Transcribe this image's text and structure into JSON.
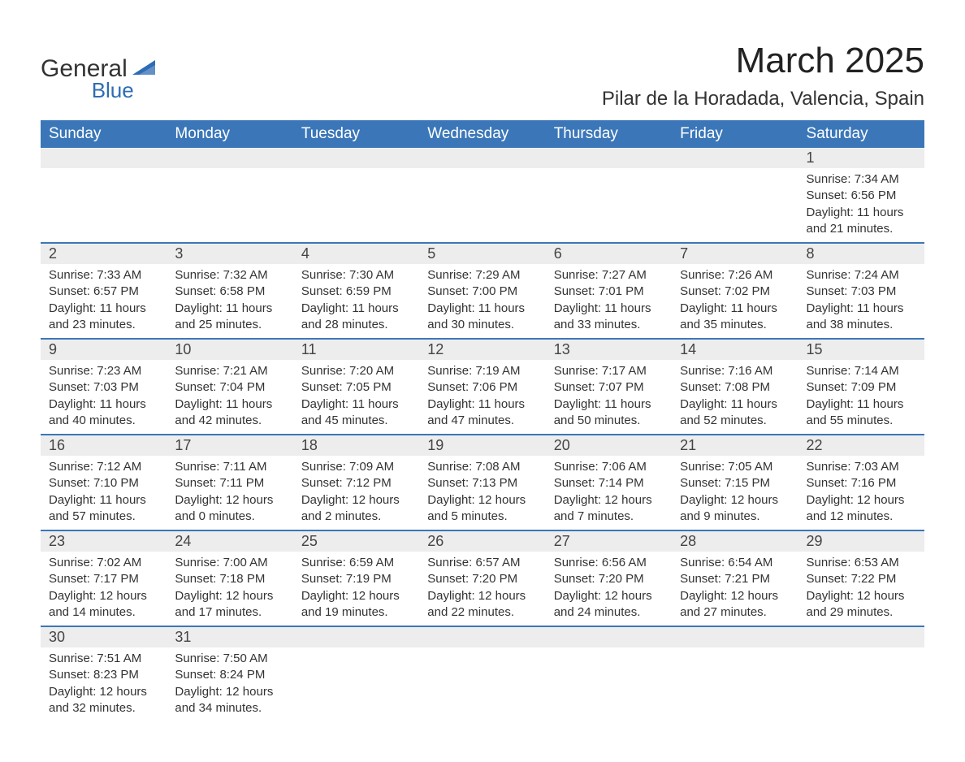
{
  "logo": {
    "general": "General",
    "blue": "Blue",
    "triangle_color": "#2e6cb5"
  },
  "title": "March 2025",
  "location": "Pilar de la Horadada, Valencia, Spain",
  "colors": {
    "header_bg": "#3b77b8",
    "header_text": "#ffffff",
    "daynum_bg": "#ededed",
    "text": "#333333",
    "border": "#3b77b8"
  },
  "weekdays": [
    "Sunday",
    "Monday",
    "Tuesday",
    "Wednesday",
    "Thursday",
    "Friday",
    "Saturday"
  ],
  "weeks": [
    [
      {
        "num": "",
        "sunrise": "",
        "sunset": "",
        "daylight1": "",
        "daylight2": ""
      },
      {
        "num": "",
        "sunrise": "",
        "sunset": "",
        "daylight1": "",
        "daylight2": ""
      },
      {
        "num": "",
        "sunrise": "",
        "sunset": "",
        "daylight1": "",
        "daylight2": ""
      },
      {
        "num": "",
        "sunrise": "",
        "sunset": "",
        "daylight1": "",
        "daylight2": ""
      },
      {
        "num": "",
        "sunrise": "",
        "sunset": "",
        "daylight1": "",
        "daylight2": ""
      },
      {
        "num": "",
        "sunrise": "",
        "sunset": "",
        "daylight1": "",
        "daylight2": ""
      },
      {
        "num": "1",
        "sunrise": "Sunrise: 7:34 AM",
        "sunset": "Sunset: 6:56 PM",
        "daylight1": "Daylight: 11 hours",
        "daylight2": "and 21 minutes."
      }
    ],
    [
      {
        "num": "2",
        "sunrise": "Sunrise: 7:33 AM",
        "sunset": "Sunset: 6:57 PM",
        "daylight1": "Daylight: 11 hours",
        "daylight2": "and 23 minutes."
      },
      {
        "num": "3",
        "sunrise": "Sunrise: 7:32 AM",
        "sunset": "Sunset: 6:58 PM",
        "daylight1": "Daylight: 11 hours",
        "daylight2": "and 25 minutes."
      },
      {
        "num": "4",
        "sunrise": "Sunrise: 7:30 AM",
        "sunset": "Sunset: 6:59 PM",
        "daylight1": "Daylight: 11 hours",
        "daylight2": "and 28 minutes."
      },
      {
        "num": "5",
        "sunrise": "Sunrise: 7:29 AM",
        "sunset": "Sunset: 7:00 PM",
        "daylight1": "Daylight: 11 hours",
        "daylight2": "and 30 minutes."
      },
      {
        "num": "6",
        "sunrise": "Sunrise: 7:27 AM",
        "sunset": "Sunset: 7:01 PM",
        "daylight1": "Daylight: 11 hours",
        "daylight2": "and 33 minutes."
      },
      {
        "num": "7",
        "sunrise": "Sunrise: 7:26 AM",
        "sunset": "Sunset: 7:02 PM",
        "daylight1": "Daylight: 11 hours",
        "daylight2": "and 35 minutes."
      },
      {
        "num": "8",
        "sunrise": "Sunrise: 7:24 AM",
        "sunset": "Sunset: 7:03 PM",
        "daylight1": "Daylight: 11 hours",
        "daylight2": "and 38 minutes."
      }
    ],
    [
      {
        "num": "9",
        "sunrise": "Sunrise: 7:23 AM",
        "sunset": "Sunset: 7:03 PM",
        "daylight1": "Daylight: 11 hours",
        "daylight2": "and 40 minutes."
      },
      {
        "num": "10",
        "sunrise": "Sunrise: 7:21 AM",
        "sunset": "Sunset: 7:04 PM",
        "daylight1": "Daylight: 11 hours",
        "daylight2": "and 42 minutes."
      },
      {
        "num": "11",
        "sunrise": "Sunrise: 7:20 AM",
        "sunset": "Sunset: 7:05 PM",
        "daylight1": "Daylight: 11 hours",
        "daylight2": "and 45 minutes."
      },
      {
        "num": "12",
        "sunrise": "Sunrise: 7:19 AM",
        "sunset": "Sunset: 7:06 PM",
        "daylight1": "Daylight: 11 hours",
        "daylight2": "and 47 minutes."
      },
      {
        "num": "13",
        "sunrise": "Sunrise: 7:17 AM",
        "sunset": "Sunset: 7:07 PM",
        "daylight1": "Daylight: 11 hours",
        "daylight2": "and 50 minutes."
      },
      {
        "num": "14",
        "sunrise": "Sunrise: 7:16 AM",
        "sunset": "Sunset: 7:08 PM",
        "daylight1": "Daylight: 11 hours",
        "daylight2": "and 52 minutes."
      },
      {
        "num": "15",
        "sunrise": "Sunrise: 7:14 AM",
        "sunset": "Sunset: 7:09 PM",
        "daylight1": "Daylight: 11 hours",
        "daylight2": "and 55 minutes."
      }
    ],
    [
      {
        "num": "16",
        "sunrise": "Sunrise: 7:12 AM",
        "sunset": "Sunset: 7:10 PM",
        "daylight1": "Daylight: 11 hours",
        "daylight2": "and 57 minutes."
      },
      {
        "num": "17",
        "sunrise": "Sunrise: 7:11 AM",
        "sunset": "Sunset: 7:11 PM",
        "daylight1": "Daylight: 12 hours",
        "daylight2": "and 0 minutes."
      },
      {
        "num": "18",
        "sunrise": "Sunrise: 7:09 AM",
        "sunset": "Sunset: 7:12 PM",
        "daylight1": "Daylight: 12 hours",
        "daylight2": "and 2 minutes."
      },
      {
        "num": "19",
        "sunrise": "Sunrise: 7:08 AM",
        "sunset": "Sunset: 7:13 PM",
        "daylight1": "Daylight: 12 hours",
        "daylight2": "and 5 minutes."
      },
      {
        "num": "20",
        "sunrise": "Sunrise: 7:06 AM",
        "sunset": "Sunset: 7:14 PM",
        "daylight1": "Daylight: 12 hours",
        "daylight2": "and 7 minutes."
      },
      {
        "num": "21",
        "sunrise": "Sunrise: 7:05 AM",
        "sunset": "Sunset: 7:15 PM",
        "daylight1": "Daylight: 12 hours",
        "daylight2": "and 9 minutes."
      },
      {
        "num": "22",
        "sunrise": "Sunrise: 7:03 AM",
        "sunset": "Sunset: 7:16 PM",
        "daylight1": "Daylight: 12 hours",
        "daylight2": "and 12 minutes."
      }
    ],
    [
      {
        "num": "23",
        "sunrise": "Sunrise: 7:02 AM",
        "sunset": "Sunset: 7:17 PM",
        "daylight1": "Daylight: 12 hours",
        "daylight2": "and 14 minutes."
      },
      {
        "num": "24",
        "sunrise": "Sunrise: 7:00 AM",
        "sunset": "Sunset: 7:18 PM",
        "daylight1": "Daylight: 12 hours",
        "daylight2": "and 17 minutes."
      },
      {
        "num": "25",
        "sunrise": "Sunrise: 6:59 AM",
        "sunset": "Sunset: 7:19 PM",
        "daylight1": "Daylight: 12 hours",
        "daylight2": "and 19 minutes."
      },
      {
        "num": "26",
        "sunrise": "Sunrise: 6:57 AM",
        "sunset": "Sunset: 7:20 PM",
        "daylight1": "Daylight: 12 hours",
        "daylight2": "and 22 minutes."
      },
      {
        "num": "27",
        "sunrise": "Sunrise: 6:56 AM",
        "sunset": "Sunset: 7:20 PM",
        "daylight1": "Daylight: 12 hours",
        "daylight2": "and 24 minutes."
      },
      {
        "num": "28",
        "sunrise": "Sunrise: 6:54 AM",
        "sunset": "Sunset: 7:21 PM",
        "daylight1": "Daylight: 12 hours",
        "daylight2": "and 27 minutes."
      },
      {
        "num": "29",
        "sunrise": "Sunrise: 6:53 AM",
        "sunset": "Sunset: 7:22 PM",
        "daylight1": "Daylight: 12 hours",
        "daylight2": "and 29 minutes."
      }
    ],
    [
      {
        "num": "30",
        "sunrise": "Sunrise: 7:51 AM",
        "sunset": "Sunset: 8:23 PM",
        "daylight1": "Daylight: 12 hours",
        "daylight2": "and 32 minutes."
      },
      {
        "num": "31",
        "sunrise": "Sunrise: 7:50 AM",
        "sunset": "Sunset: 8:24 PM",
        "daylight1": "Daylight: 12 hours",
        "daylight2": "and 34 minutes."
      },
      {
        "num": "",
        "sunrise": "",
        "sunset": "",
        "daylight1": "",
        "daylight2": ""
      },
      {
        "num": "",
        "sunrise": "",
        "sunset": "",
        "daylight1": "",
        "daylight2": ""
      },
      {
        "num": "",
        "sunrise": "",
        "sunset": "",
        "daylight1": "",
        "daylight2": ""
      },
      {
        "num": "",
        "sunrise": "",
        "sunset": "",
        "daylight1": "",
        "daylight2": ""
      },
      {
        "num": "",
        "sunrise": "",
        "sunset": "",
        "daylight1": "",
        "daylight2": ""
      }
    ]
  ]
}
